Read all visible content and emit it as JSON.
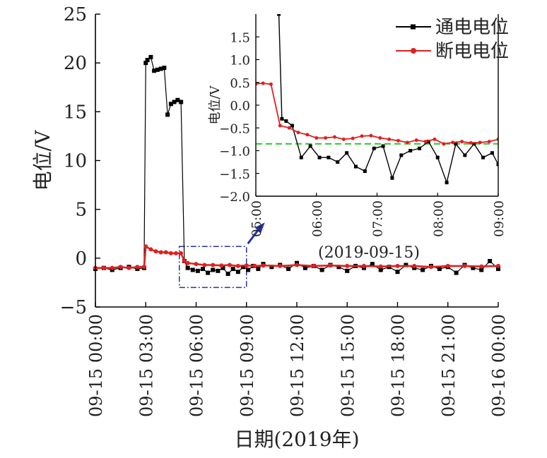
{
  "chart_data": {
    "type": "line",
    "main": {
      "xlabel": "日期(2019年)",
      "ylabel": "电位/V",
      "xlim": [
        0,
        24
      ],
      "ylim": [
        -5,
        25
      ],
      "x_tick_values": [
        0,
        3,
        6,
        9,
        12,
        15,
        18,
        21,
        24
      ],
      "x_tick_labels": [
        "09-15 00:00",
        "09-15 03:00",
        "09-15 06:00",
        "09-15 09:00",
        "09-15 12:00",
        "09-15 15:00",
        "09-15 18:00",
        "09-15 21:00",
        "09-16 00:00"
      ],
      "y_ticks": [
        -5,
        0,
        5,
        10,
        15,
        20,
        25
      ],
      "y_tick_labels": [
        "−5",
        "0",
        "5",
        "10",
        "15",
        "20",
        "25"
      ],
      "series": [
        {
          "name": "通电电位",
          "color": "#000000",
          "marker": "square",
          "x": [
            0,
            0.5,
            1,
            1.5,
            2,
            2.5,
            2.9,
            3.0,
            3.1,
            3.3,
            3.5,
            3.7,
            3.9,
            4.1,
            4.3,
            4.5,
            4.7,
            4.9,
            5.1,
            5.3,
            5.5,
            5.8,
            6.1,
            6.4,
            6.7,
            7.0,
            7.3,
            7.6,
            7.9,
            8.2,
            8.5,
            8.8,
            9.1,
            9.4,
            9.7,
            10,
            10.5,
            11,
            11.5,
            12,
            12.5,
            13,
            13.5,
            14,
            14.5,
            15,
            15.5,
            16,
            16.5,
            17,
            17.5,
            18,
            18.5,
            19,
            19.5,
            20,
            20.5,
            21,
            21.5,
            22,
            22.5,
            23,
            23.5,
            24
          ],
          "y": [
            -1.1,
            -1.0,
            -1.2,
            -1.0,
            -0.9,
            -1.1,
            -1.0,
            20.0,
            20.3,
            20.6,
            19.2,
            19.3,
            19.4,
            19.5,
            14.7,
            15.8,
            16.0,
            16.2,
            16.0,
            -0.3,
            -1.0,
            -1.2,
            -1.3,
            -1.1,
            -1.5,
            -1.2,
            -1.3,
            -1.0,
            -1.6,
            -1.1,
            -1.4,
            -0.9,
            -1.2,
            -0.8,
            -1.1,
            -0.6,
            -0.9,
            -0.7,
            -1.1,
            -0.5,
            -1.0,
            -0.8,
            -1.2,
            -0.7,
            -0.9,
            -1.3,
            -0.8,
            -1.0,
            -0.6,
            -1.2,
            -0.9,
            -1.4,
            -0.7,
            -1.0,
            -1.2,
            -0.8,
            -1.1,
            -0.9,
            -1.5,
            -0.7,
            -1.0,
            -1.2,
            -0.3,
            -1.1
          ]
        },
        {
          "name": "断电电位",
          "color": "#e02020",
          "marker": "circle",
          "x": [
            0,
            0.5,
            1,
            1.5,
            2,
            2.5,
            2.9,
            3.0,
            3.3,
            3.6,
            3.9,
            4.2,
            4.5,
            4.8,
            5.1,
            5.3,
            5.5,
            6.0,
            6.5,
            7.0,
            7.5,
            8.0,
            8.5,
            9.0,
            9.5,
            10,
            11,
            12,
            13,
            14,
            15,
            16,
            17,
            18,
            19,
            20,
            21,
            22,
            23,
            24
          ],
          "y": [
            -1.0,
            -1.0,
            -1.0,
            -0.9,
            -1.0,
            -0.9,
            -0.9,
            1.2,
            0.9,
            0.7,
            0.6,
            0.6,
            0.5,
            0.5,
            0.5,
            -0.3,
            -0.5,
            -0.6,
            -0.7,
            -0.7,
            -0.75,
            -0.7,
            -0.8,
            -0.75,
            -0.8,
            -0.75,
            -0.8,
            -0.7,
            -0.8,
            -0.75,
            -0.8,
            -0.8,
            -0.85,
            -0.8,
            -0.8,
            -0.9,
            -0.8,
            -0.8,
            -0.85,
            -0.8
          ]
        }
      ]
    },
    "inset": {
      "title": "(2019-09-15)",
      "ylabel": "电位/V",
      "xlim": [
        5,
        9
      ],
      "ylim": [
        -2.0,
        2.0
      ],
      "x_tick_values": [
        5,
        6,
        7,
        8,
        9
      ],
      "x_tick_labels": [
        "05:00",
        "06:00",
        "07:00",
        "08:00",
        "09:00"
      ],
      "y_ticks": [
        -2.0,
        -1.5,
        -1.0,
        -0.5,
        0.0,
        0.5,
        1.0,
        1.5
      ],
      "y_tick_labels": [
        "−2.0",
        "−1.5",
        "−1.0",
        "−0.5",
        "0.0",
        "0.5",
        "1.0",
        "1.5"
      ],
      "reference_line": {
        "y": -0.85,
        "color": "#33cc33",
        "style": "dashed"
      },
      "series": [
        {
          "name": "通电电位",
          "color": "#000000",
          "marker": "square",
          "x": [
            5.38,
            5.43,
            5.5,
            5.6,
            5.75,
            5.9,
            6.05,
            6.2,
            6.35,
            6.5,
            6.65,
            6.8,
            6.95,
            7.1,
            7.25,
            7.4,
            7.55,
            7.7,
            7.85,
            8.0,
            8.15,
            8.3,
            8.45,
            8.6,
            8.75,
            8.9,
            9.0
          ],
          "y": [
            2.0,
            -0.3,
            -0.35,
            -0.45,
            -1.15,
            -0.9,
            -1.15,
            -1.15,
            -1.25,
            -1.05,
            -1.35,
            -1.45,
            -0.95,
            -0.9,
            -1.6,
            -1.1,
            -1.0,
            -0.95,
            -0.8,
            -1.15,
            -1.7,
            -0.85,
            -1.1,
            -0.85,
            -1.15,
            -1.05,
            -1.3
          ]
        },
        {
          "name": "断电电位",
          "color": "#e02020",
          "marker": "circle",
          "x": [
            5.0,
            5.12,
            5.25,
            5.4,
            5.55,
            5.7,
            5.85,
            6.0,
            6.15,
            6.3,
            6.45,
            6.6,
            6.75,
            6.9,
            7.05,
            7.2,
            7.35,
            7.5,
            7.65,
            7.8,
            7.95,
            8.1,
            8.25,
            8.4,
            8.55,
            8.7,
            8.85,
            9.0
          ],
          "y": [
            0.47,
            0.48,
            0.46,
            -0.45,
            -0.5,
            -0.6,
            -0.65,
            -0.72,
            -0.72,
            -0.7,
            -0.75,
            -0.73,
            -0.68,
            -0.67,
            -0.72,
            -0.75,
            -0.78,
            -0.82,
            -0.77,
            -0.8,
            -0.75,
            -0.85,
            -0.82,
            -0.8,
            -0.83,
            -0.82,
            -0.8,
            -0.75
          ]
        }
      ]
    },
    "highlight_box": {
      "x_range": [
        5,
        9
      ],
      "y_range": [
        -3,
        1.2
      ],
      "color": "#2233aa",
      "style": "dash-dot"
    },
    "legend": {
      "placement": "top-right",
      "entries": [
        "通电电位",
        "断电电位"
      ]
    }
  }
}
